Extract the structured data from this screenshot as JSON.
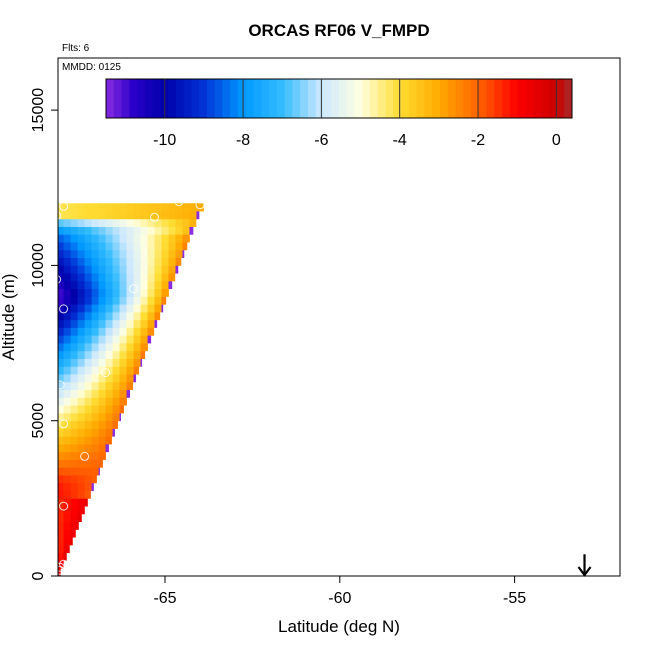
{
  "chart_data": {
    "type": "heatmap",
    "title": "ORCAS RF06 V_FMPD",
    "xlabel": "Latitude (deg N)",
    "ylabel": "Altitude (m)",
    "xlim": [
      -68.1,
      -52.1
    ],
    "ylim": [
      0,
      16800
    ],
    "x_ticks": [
      -65,
      -60,
      -55
    ],
    "x_tick_labels": [
      "-65",
      "-60",
      "-55"
    ],
    "y_ticks": [
      0,
      5000,
      10000,
      15000
    ],
    "y_tick_labels": [
      "0",
      "5000",
      "10000",
      "15000"
    ],
    "annotations": {
      "flights": "Flts: 6",
      "date": "MMDD: 0125"
    },
    "colorbar": {
      "min": -11.5,
      "max": 0.4,
      "ticks": [
        -10,
        -8,
        -6,
        -4,
        -2,
        0
      ],
      "tick_labels": [
        "-10",
        "-8",
        "-6",
        "-4",
        "-2",
        "0"
      ],
      "color_stops": [
        {
          "v": -11.5,
          "c": "#8a2be2"
        },
        {
          "v": -10.8,
          "c": "#2a00c8"
        },
        {
          "v": -10.0,
          "c": "#0000aa"
        },
        {
          "v": -9.0,
          "c": "#0033d6"
        },
        {
          "v": -8.0,
          "c": "#0099ff"
        },
        {
          "v": -7.0,
          "c": "#33bbff"
        },
        {
          "v": -6.0,
          "c": "#cce8ff"
        },
        {
          "v": -5.0,
          "c": "#ffffe0"
        },
        {
          "v": -4.0,
          "c": "#ffdd33"
        },
        {
          "v": -3.0,
          "c": "#ffaa00"
        },
        {
          "v": -2.0,
          "c": "#ff6600"
        },
        {
          "v": -1.0,
          "c": "#ff0000"
        },
        {
          "v": 0.0,
          "c": "#cc0000"
        },
        {
          "v": 0.4,
          "c": "#a52a2a"
        }
      ]
    },
    "field_grid": {
      "lat_start": -68.1,
      "lat_step": 0.2,
      "alt_step": 250,
      "top_altitude": 12000,
      "edge_latitude_at_top": -63.9,
      "boundary_slope_m_per_deg": -2900
    },
    "observations": [
      {
        "lat": -67.9,
        "alt": 11900
      },
      {
        "lat": -68.1,
        "alt": 11600
      },
      {
        "lat": -65.3,
        "alt": 11550
      },
      {
        "lat": -64.6,
        "alt": 12050
      },
      {
        "lat": -64.0,
        "alt": 11950
      },
      {
        "lat": -68.1,
        "alt": 9550
      },
      {
        "lat": -65.9,
        "alt": 9250
      },
      {
        "lat": -67.9,
        "alt": 8600
      },
      {
        "lat": -66.7,
        "alt": 6550
      },
      {
        "lat": -68.0,
        "alt": 6150
      },
      {
        "lat": -67.9,
        "alt": 4900
      },
      {
        "lat": -67.3,
        "alt": 3850
      },
      {
        "lat": -67.9,
        "alt": 2250
      },
      {
        "lat": -67.9,
        "alt": 380
      },
      {
        "lat": -68.0,
        "alt": 280
      },
      {
        "lat": -68.0,
        "alt": 180
      }
    ],
    "direction_arrow": {
      "lat": -53.0,
      "alt_top": 700,
      "alt_bottom": 0
    }
  }
}
